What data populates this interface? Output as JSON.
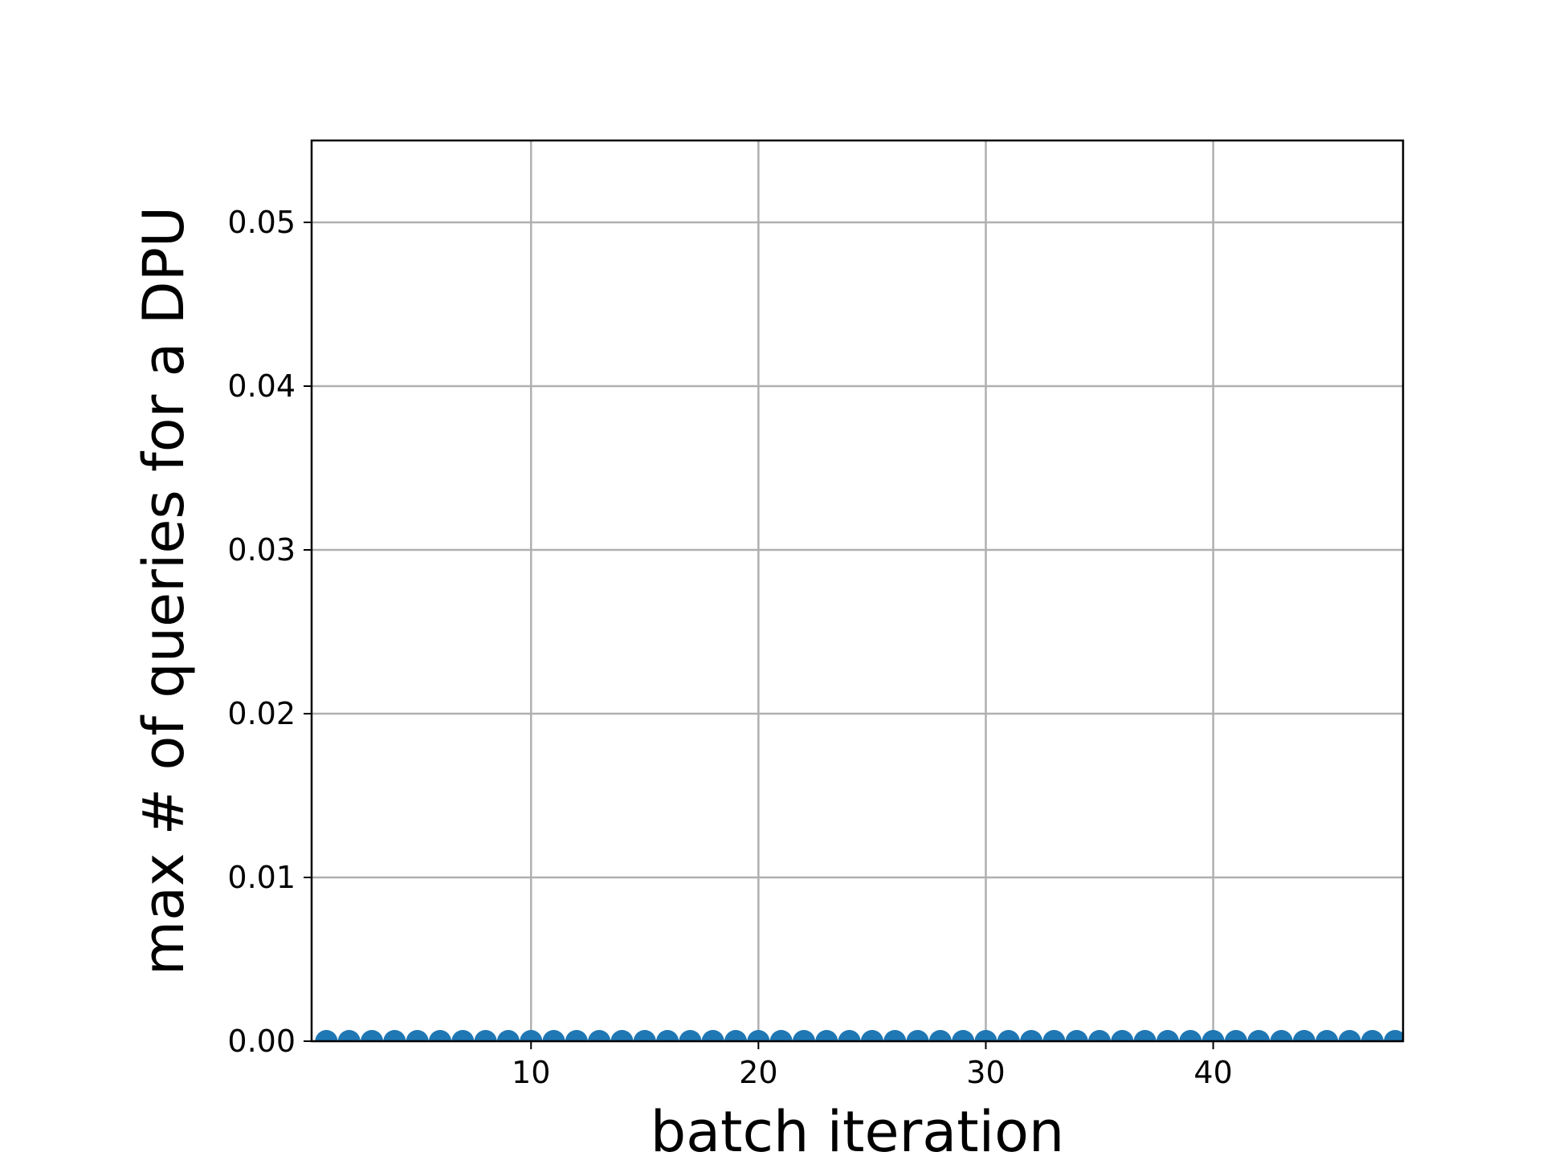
{
  "chart_data": {
    "type": "scatter",
    "title": "",
    "xlabel": "batch iteration",
    "ylabel": "max # of queries for a DPU",
    "xlim": [
      0.35,
      48.35
    ],
    "ylim": [
      0,
      0.055
    ],
    "xticks": [
      10,
      20,
      30,
      40
    ],
    "xtick_labels": [
      "10",
      "20",
      "30",
      "40"
    ],
    "yticks": [
      0.0,
      0.01,
      0.02,
      0.03,
      0.04,
      0.05
    ],
    "ytick_labels": [
      "0.00",
      "0.01",
      "0.02",
      "0.03",
      "0.04",
      "0.05"
    ],
    "grid": true,
    "legend": "none",
    "marker_color": "#1f77b4",
    "series": [
      {
        "x": [
          1,
          2,
          3,
          4,
          5,
          6,
          7,
          8,
          9,
          10,
          11,
          12,
          13,
          14,
          15,
          16,
          17,
          18,
          19,
          20,
          21,
          22,
          23,
          24,
          25,
          26,
          27,
          28,
          29,
          30,
          31,
          32,
          33,
          34,
          35,
          36,
          37,
          38,
          39,
          40,
          41,
          42,
          43,
          44,
          45,
          46,
          47,
          48
        ],
        "y": [
          0,
          0,
          0,
          0,
          0,
          0,
          0,
          0,
          0,
          0,
          0,
          0,
          0,
          0,
          0,
          0,
          0,
          0,
          0,
          0,
          0,
          0,
          0,
          0,
          0,
          0,
          0,
          0,
          0,
          0,
          0,
          0,
          0,
          0,
          0,
          0,
          0,
          0,
          0,
          0,
          0,
          0,
          0,
          0,
          0,
          0,
          0,
          0
        ]
      }
    ]
  }
}
